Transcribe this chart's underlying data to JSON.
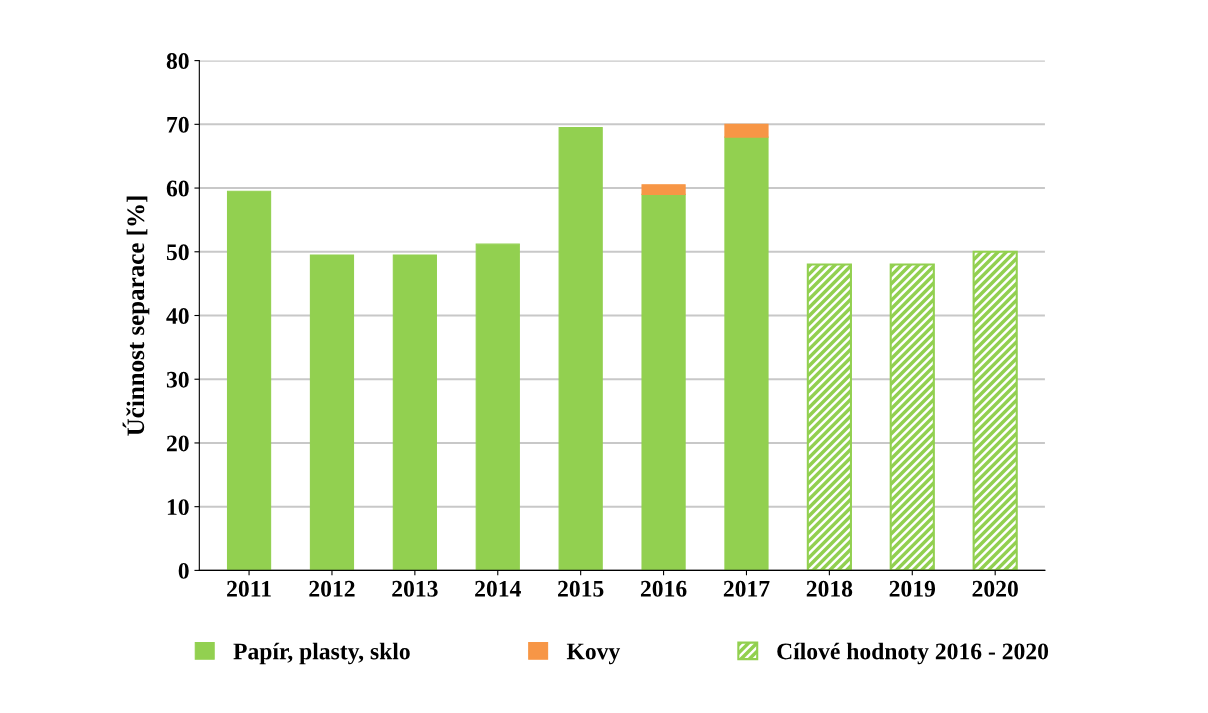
{
  "chart_data": {
    "type": "bar",
    "stacked": true,
    "ylabel": "Účinnost separace [%]",
    "categories": [
      "2011",
      "2012",
      "2013",
      "2014",
      "2015",
      "2016",
      "2017",
      "2018",
      "2019",
      "2020"
    ],
    "series": [
      {
        "name": "Papír, plasty, sklo",
        "color": "#92d050",
        "values": [
          59.5,
          49.5,
          49.5,
          51.2,
          69.5,
          59,
          68,
          null,
          null,
          null
        ]
      },
      {
        "name": "Kovy",
        "color": "#f79646",
        "values": [
          null,
          null,
          null,
          null,
          null,
          1.5,
          2,
          null,
          null,
          null
        ]
      },
      {
        "name": "Cílové hodnoty 2016 - 2020",
        "color": "#92d050",
        "values": [
          null,
          null,
          null,
          null,
          null,
          null,
          null,
          48,
          48,
          50
        ]
      }
    ],
    "ylim": [
      0,
      80
    ],
    "yticks": [
      0,
      10,
      20,
      30,
      40,
      50,
      60,
      70,
      80
    ],
    "grid": "y",
    "legend": "bottom"
  }
}
